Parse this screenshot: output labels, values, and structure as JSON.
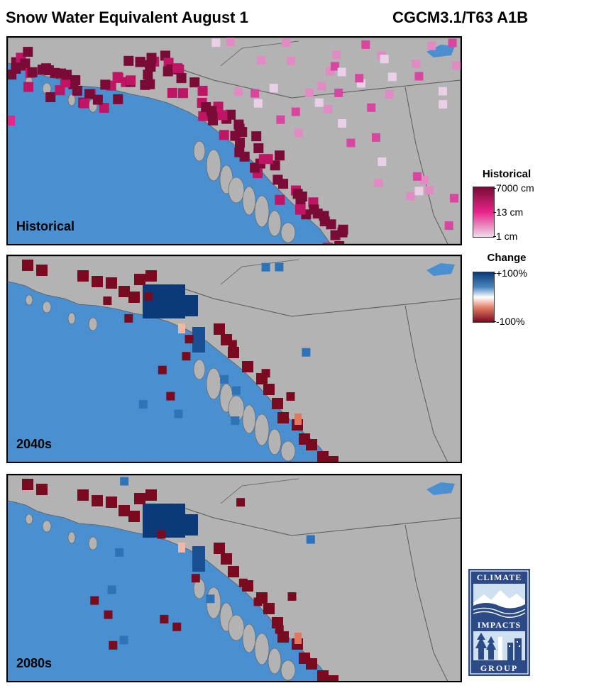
{
  "header": {
    "title": "Snow Water Equivalent August 1",
    "model": "CGCM3.1/T63 A1B"
  },
  "panels": [
    {
      "label": "Historical",
      "mode": "historical"
    },
    {
      "label": "2040s",
      "mode": "change"
    },
    {
      "label": "2080s",
      "mode": "change"
    }
  ],
  "legend_historical": {
    "title": "Historical",
    "ticks": [
      "7000 cm",
      "13 cm",
      "1 cm"
    ],
    "colors": [
      "#7a0a36",
      "#e8248a",
      "#ecdcec"
    ]
  },
  "legend_change": {
    "title": "Change",
    "ticks": [
      "+100%",
      "-100%"
    ],
    "colors": [
      "#0b3a78",
      "#ffffff",
      "#7a0a20"
    ]
  },
  "map_colors": {
    "ocean": "#4a90d0",
    "land": "#b3b3b3",
    "border": "#5a5a5a"
  },
  "logo": {
    "top": "CLIMATE",
    "mid": "IMPACTS",
    "bottom": "GROUP"
  }
}
